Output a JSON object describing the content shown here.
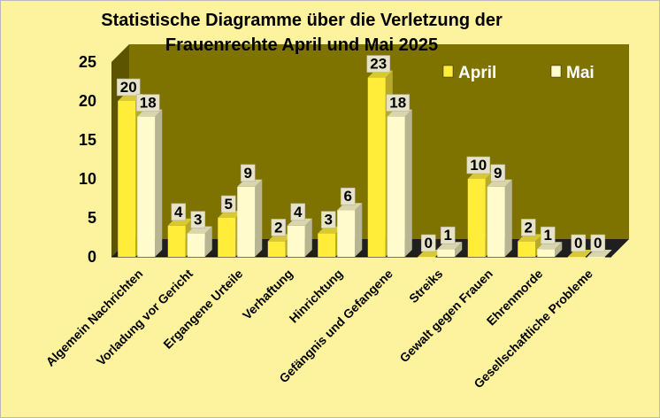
{
  "chart_data": {
    "type": "bar",
    "title": "Statistische Diagramme über die Verletzung der\nFrauenrechte April und Mai 2025",
    "categories": [
      "Algemein Nachrichten",
      "Vorladung vor Gericht",
      "Ergangene Urteile",
      "Verhaftung",
      "Hinrichtung",
      "Gefängnis und Gefangene",
      "Streiks",
      "Gewalt gegen Frauen",
      "Ehrenmorde",
      "Gesellschaftliche Probleme"
    ],
    "series": [
      {
        "name": "April",
        "color": "#ffed3a",
        "values": [
          20,
          4,
          5,
          2,
          3,
          23,
          0,
          10,
          2,
          0
        ]
      },
      {
        "name": "Mai",
        "color": "#fffbcc",
        "values": [
          18,
          3,
          9,
          4,
          6,
          18,
          1,
          9,
          1,
          0
        ]
      }
    ],
    "ylim": [
      0,
      25
    ],
    "yticks": [
      0,
      5,
      10,
      15,
      20,
      25
    ],
    "legend_position": "top-right",
    "plot_background": "#7f7300",
    "page_background": "#fdf29e",
    "grid": false,
    "data_labels": true
  }
}
